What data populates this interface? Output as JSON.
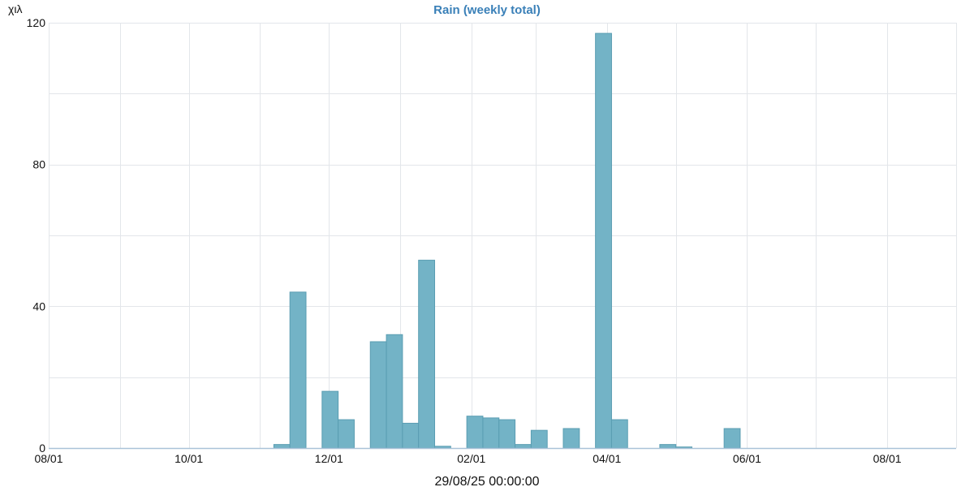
{
  "chart_data": {
    "type": "bar",
    "title": "Rain (weekly total)",
    "unit": "χιλ",
    "xlabel": "29/08/25 00:00:00",
    "ylabel": "",
    "ylim": [
      0,
      120
    ],
    "y_ticks": [
      "0",
      "40",
      "80",
      "120"
    ],
    "x_tick_labels": [
      "08/01",
      "10/01",
      "12/01",
      "02/01",
      "04/01",
      "06/01",
      "08/01"
    ],
    "grid": true,
    "week_start": "2024-08-01",
    "week_end": "2025-08-29",
    "bars": [
      {
        "week": "2024-11-07",
        "value": 1
      },
      {
        "week": "2024-11-14",
        "value": 44
      },
      {
        "week": "2024-11-28",
        "value": 16
      },
      {
        "week": "2024-12-05",
        "value": 8
      },
      {
        "week": "2024-12-19",
        "value": 30
      },
      {
        "week": "2024-12-26",
        "value": 32
      },
      {
        "week": "2025-01-02",
        "value": 7
      },
      {
        "week": "2025-01-09",
        "value": 53
      },
      {
        "week": "2025-01-16",
        "value": 0.5
      },
      {
        "week": "2025-01-30",
        "value": 9
      },
      {
        "week": "2025-02-06",
        "value": 8.5
      },
      {
        "week": "2025-02-13",
        "value": 8
      },
      {
        "week": "2025-02-20",
        "value": 1
      },
      {
        "week": "2025-02-27",
        "value": 5
      },
      {
        "week": "2025-03-13",
        "value": 5.5
      },
      {
        "week": "2025-03-27",
        "value": 117
      },
      {
        "week": "2025-04-03",
        "value": 8
      },
      {
        "week": "2025-04-24",
        "value": 1
      },
      {
        "week": "2025-05-01",
        "value": 0.3
      },
      {
        "week": "2025-05-22",
        "value": 5.5
      }
    ]
  },
  "colors": {
    "bar_fill": "#73b3c6",
    "bar_stroke": "#5a9db2",
    "title": "#3a80b8",
    "axis": "#a9c3d8",
    "grid": "#e3e6ea"
  }
}
